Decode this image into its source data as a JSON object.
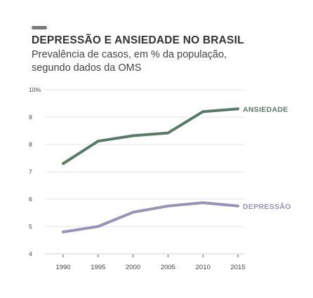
{
  "header": {
    "title": "DEPRESSÃO E ANSIEDADE NO BRASIL",
    "subtitle_line1": "Prevalência de casos, em % da população,",
    "subtitle_line2": "segundo dados da OMS"
  },
  "colors": {
    "ansiedade": "#587b68",
    "depressao": "#9a91b9",
    "grid": "#e3e3e3",
    "accent": "#7a7a7a"
  },
  "chart_data": {
    "type": "line",
    "title": "DEPRESSÃO E ANSIEDADE NO BRASIL",
    "subtitle": "Prevalência de casos, em % da população, segundo dados da OMS",
    "x": [
      1990,
      1995,
      2000,
      2005,
      2010,
      2015
    ],
    "x_tick_labels": [
      "1990",
      "1995",
      "2000",
      "2005",
      "2010",
      "2015"
    ],
    "y_tick_labels": [
      "4",
      "5",
      "6",
      "7",
      "8",
      "9",
      "10%"
    ],
    "y_ticks": [
      4,
      5,
      6,
      7,
      8,
      9,
      10
    ],
    "ylim": [
      4,
      10
    ],
    "xlim": [
      1990,
      2015
    ],
    "grid": true,
    "series": [
      {
        "name": "ANSIEDADE",
        "values": [
          7.3,
          8.12,
          8.32,
          8.42,
          9.2,
          9.3
        ]
      },
      {
        "name": "DEPRESSÃO",
        "values": [
          4.8,
          5.0,
          5.52,
          5.75,
          5.87,
          5.75
        ]
      }
    ]
  }
}
